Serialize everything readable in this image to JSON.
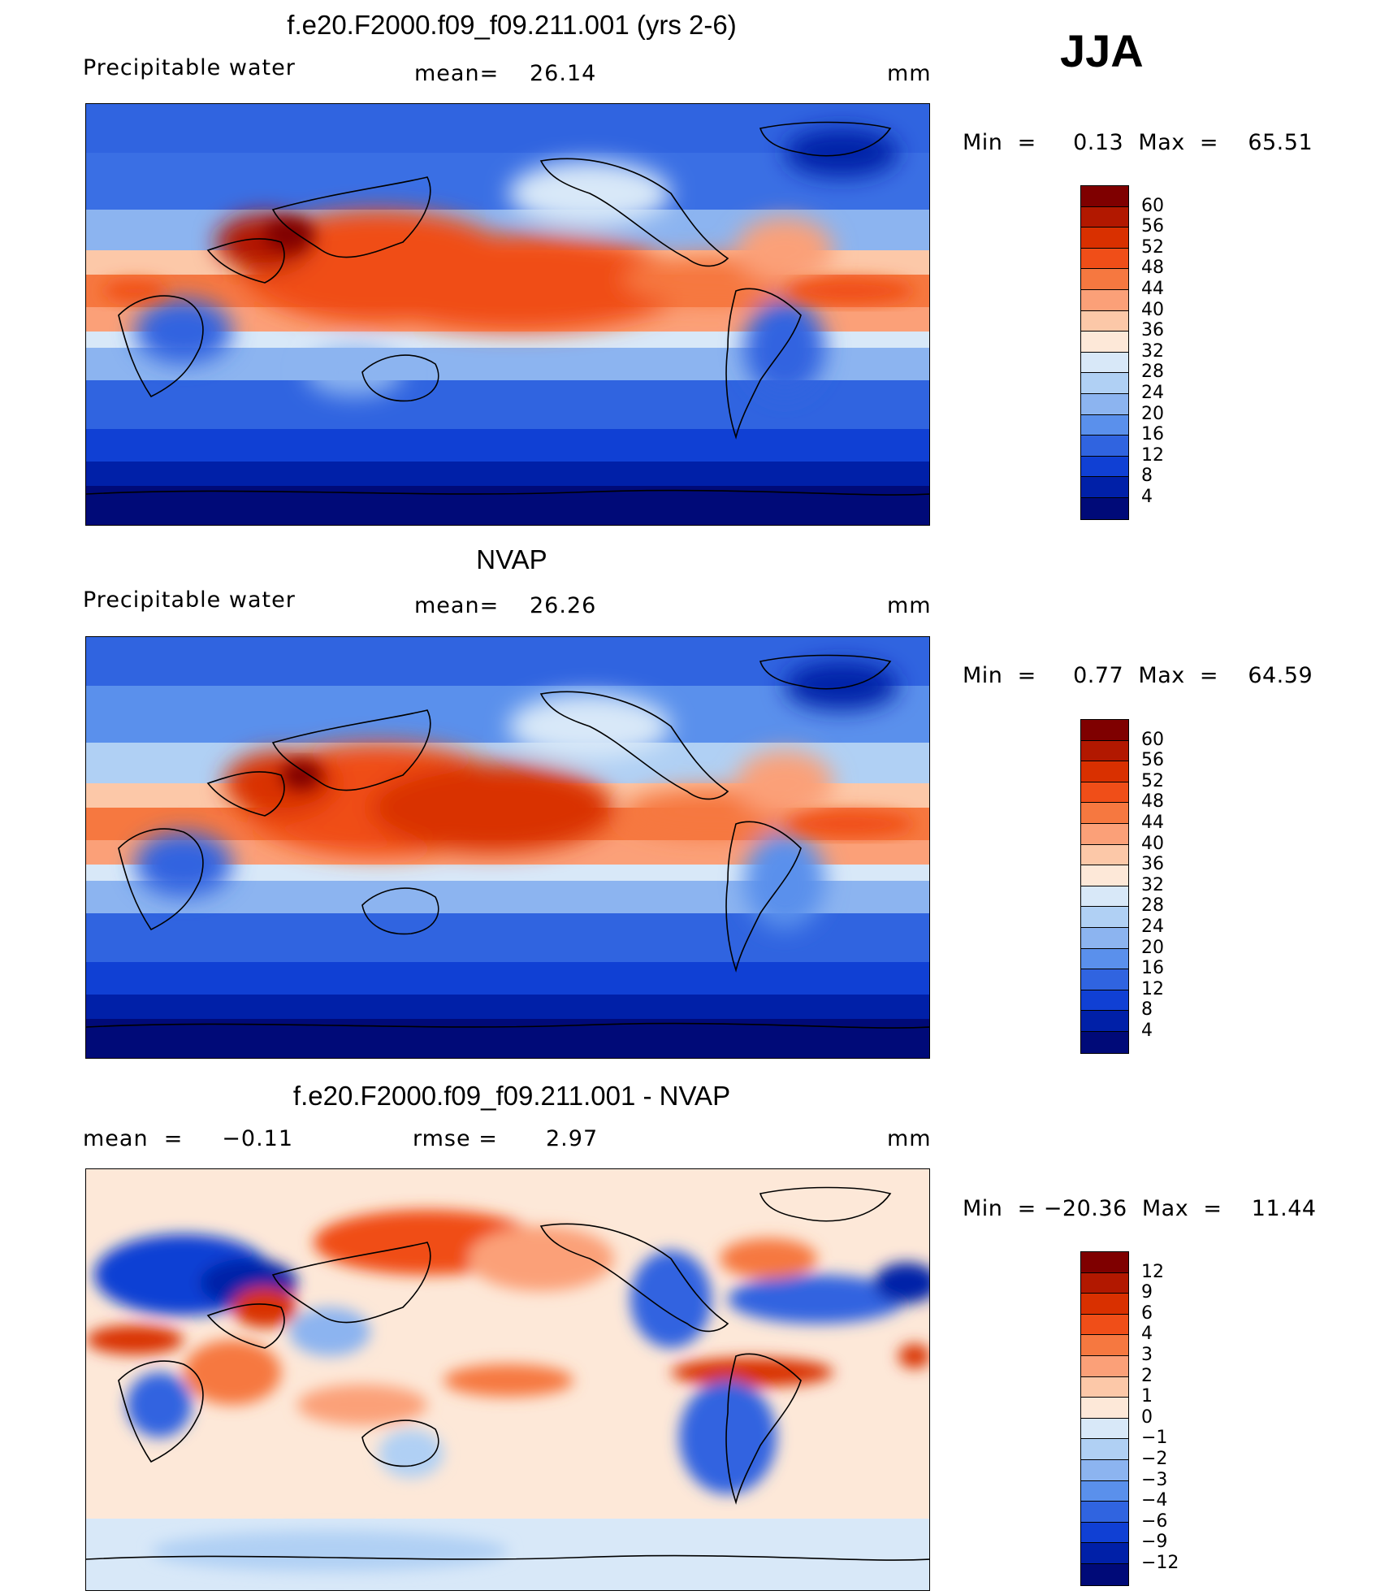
{
  "season": "JJA",
  "panels": [
    {
      "title": "f.e20.F2000.f09_f09.211.001 (yrs 2-6)",
      "left_label": "Precipitable  water",
      "stat_label": "mean=",
      "stat_value": "26.14",
      "units": "mm",
      "min_label": "Min  =     0.13  Max  =    65.51",
      "colorbar_ticks": [
        "60",
        "56",
        "52",
        "48",
        "44",
        "40",
        "36",
        "32",
        "28",
        "24",
        "20",
        "16",
        "12",
        "8",
        "4"
      ],
      "colors": [
        "#7f0000",
        "#b21800",
        "#d93000",
        "#f04e18",
        "#f67840",
        "#fba078",
        "#fcc8a8",
        "#fde8d8",
        "#d8e8f8",
        "#b0d0f4",
        "#8cb4f0",
        "#5a90ec",
        "#3064e0",
        "#1040d4",
        "#0020a8",
        "#000a78"
      ]
    },
    {
      "title": "NVAP",
      "left_label": "Precipitable  water",
      "stat_label": "mean=",
      "stat_value": "26.26",
      "units": "mm",
      "min_label": "Min  =     0.77  Max  =    64.59",
      "colorbar_ticks": [
        "60",
        "56",
        "52",
        "48",
        "44",
        "40",
        "36",
        "32",
        "28",
        "24",
        "20",
        "16",
        "12",
        "8",
        "4"
      ],
      "colors": [
        "#7f0000",
        "#b21800",
        "#d93000",
        "#f04e18",
        "#f67840",
        "#fba078",
        "#fcc8a8",
        "#fde8d8",
        "#d8e8f8",
        "#b0d0f4",
        "#8cb4f0",
        "#5a90ec",
        "#3064e0",
        "#1040d4",
        "#0020a8",
        "#000a78"
      ]
    },
    {
      "title": "f.e20.F2000.f09_f09.211.001 - NVAP",
      "left_label": "mean  =     −0.11",
      "stat_label": "rmse  =",
      "stat_value": "2.97",
      "units": "mm",
      "min_label": "Min  = −20.36  Max  =    11.44",
      "colorbar_ticks": [
        "12",
        "9",
        "6",
        "4",
        "3",
        "2",
        "1",
        "0",
        "−1",
        "−2",
        "−3",
        "−4",
        "−6",
        "−9",
        "−12"
      ],
      "colors": [
        "#7f0000",
        "#b21800",
        "#d93000",
        "#f04e18",
        "#f67840",
        "#fba078",
        "#fcc8a8",
        "#fde8d8",
        "#d8e8f8",
        "#b0d0f4",
        "#8cb4f0",
        "#5a90ec",
        "#3064e0",
        "#1040d4",
        "#0020a8",
        "#000a78"
      ]
    }
  ]
}
